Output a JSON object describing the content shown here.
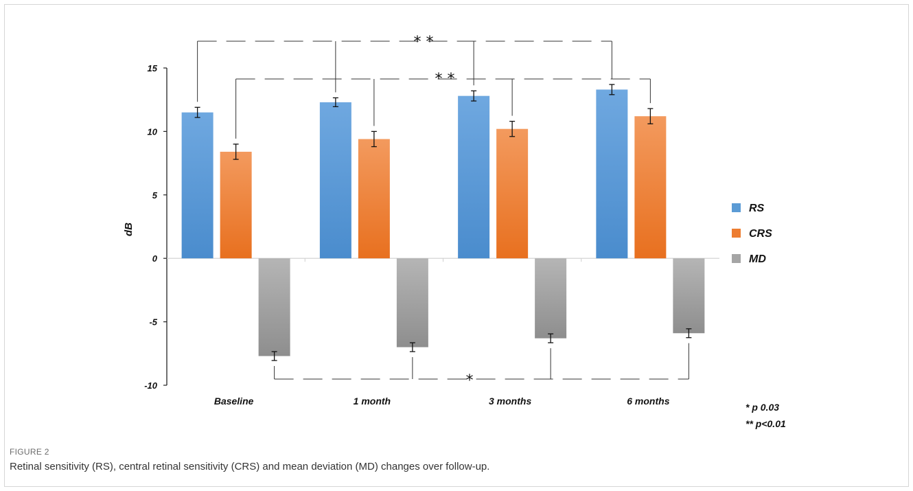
{
  "figure": {
    "label": "FIGURE 2",
    "caption": "Retinal sensitivity (RS), central retinal sensitivity (CRS) and mean deviation (MD) changes over follow-up."
  },
  "chart_data": {
    "type": "bar",
    "title": "",
    "xlabel": "",
    "ylabel": "dB",
    "ylim": [
      -10,
      15
    ],
    "yticks": [
      15,
      10,
      5,
      0,
      -5,
      -10
    ],
    "categories": [
      "Baseline",
      "1 month",
      "3 months",
      "6 months"
    ],
    "series": [
      {
        "name": "RS",
        "color": "#5b9bd5",
        "values": [
          11.5,
          12.3,
          12.8,
          13.3
        ],
        "errors": [
          0.4,
          0.35,
          0.4,
          0.4
        ]
      },
      {
        "name": "CRS",
        "color": "#ed7d31",
        "values": [
          8.4,
          9.4,
          10.2,
          11.2
        ],
        "errors": [
          0.6,
          0.6,
          0.6,
          0.6
        ]
      },
      {
        "name": "MD",
        "color": "#a5a5a5",
        "values": [
          -7.7,
          -7.0,
          -6.3,
          -5.9
        ],
        "errors": [
          0.35,
          0.35,
          0.35,
          0.35
        ]
      }
    ],
    "legend_position": "right",
    "grid": false,
    "annotations": [
      {
        "series": "RS",
        "text": "* *"
      },
      {
        "series": "CRS",
        "text": "* *"
      },
      {
        "series": "MD",
        "text": "*"
      }
    ],
    "notes": [
      "* p 0.03",
      "** p<0.01"
    ]
  }
}
